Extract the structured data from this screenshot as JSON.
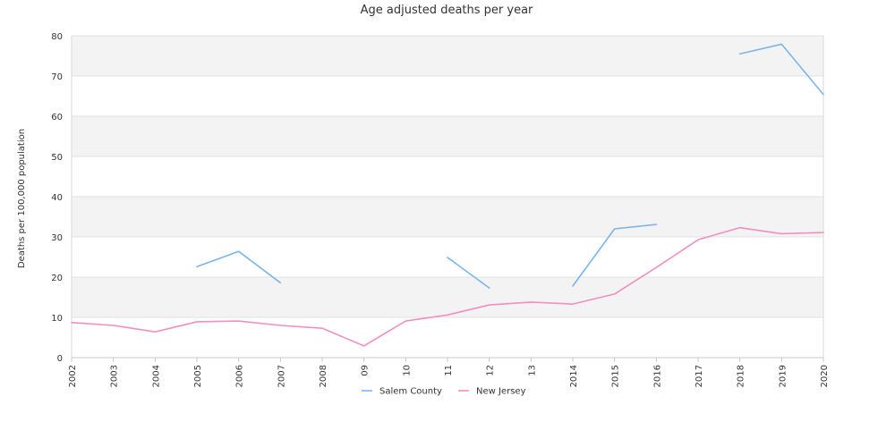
{
  "chart_data": {
    "type": "line",
    "title": "Age adjusted deaths per year",
    "xlabel": "",
    "ylabel": "Deaths per 100,000 population",
    "ylim": [
      0,
      80
    ],
    "yticks": [
      "0",
      "10",
      "20",
      "30",
      "40",
      "50",
      "60",
      "70",
      "80"
    ],
    "categories": [
      "2002",
      "2003",
      "2004",
      "2005",
      "2006",
      "2007",
      "2008",
      "09",
      "10",
      "11",
      "12",
      "13",
      "2014",
      "2015",
      "2016",
      "2017",
      "2018",
      "2019",
      "2020"
    ],
    "grid": true,
    "legend_position": "bottom",
    "series": [
      {
        "name": "Salem County",
        "color": "#7cb5ec",
        "values": [
          null,
          null,
          null,
          22.6,
          26.4,
          18.6,
          null,
          null,
          null,
          24.9,
          17.3,
          null,
          17.8,
          32.0,
          33.1,
          null,
          75.5,
          77.9,
          65.4
        ]
      },
      {
        "name": "New Jersey",
        "color": "#f28fbf",
        "values": [
          8.7,
          8.0,
          6.4,
          8.9,
          9.1,
          8.0,
          7.3,
          2.9,
          9.1,
          10.6,
          13.1,
          13.8,
          13.3,
          15.8,
          22.4,
          29.3,
          32.3,
          30.8,
          31.1
        ]
      }
    ]
  }
}
